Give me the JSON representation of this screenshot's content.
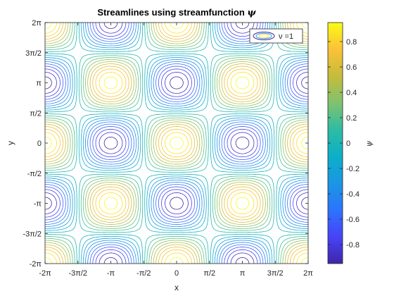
{
  "chart_data": {
    "type": "contour",
    "title_text": "Streamlines using streamfunction ",
    "title_symbol": "ψ",
    "xlabel": "x",
    "ylabel": "y",
    "xlim": [
      -6.2832,
      6.2832
    ],
    "ylim": [
      -6.2832,
      6.2832
    ],
    "xticks": [
      -6.2832,
      -4.7124,
      -3.1416,
      -1.5708,
      0,
      1.5708,
      3.1416,
      4.7124,
      6.2832
    ],
    "xtick_labels": [
      "-2π",
      "-3π/2",
      "-π",
      "-π/2",
      "0",
      "π/2",
      "π",
      "3π/2",
      "2π"
    ],
    "yticks": [
      -6.2832,
      -4.7124,
      -3.1416,
      -1.5708,
      0,
      1.5708,
      3.1416,
      4.7124,
      6.2832
    ],
    "ytick_labels": [
      "-2π",
      "-3π/2",
      "-π",
      "-π/2",
      "0",
      "π/2",
      "π",
      "3π/2",
      "2π"
    ],
    "function": "psi = cos(x) * cos(y)",
    "level_min": -0.95,
    "level_max": 0.95,
    "level_count": 20,
    "legend": {
      "label": "ν =1",
      "position": "top-right"
    },
    "colorbar": {
      "label": "ψ",
      "limits": [
        -0.95,
        0.95
      ],
      "ticks": [
        -0.8,
        -0.6,
        -0.4,
        -0.2,
        0,
        0.2,
        0.4,
        0.6,
        0.8
      ],
      "tick_labels": [
        "-0.8",
        "-0.6",
        "-0.4",
        "-0.2",
        "0",
        "0.2",
        "0.4",
        "0.6",
        "0.8"
      ],
      "colormap": [
        "#3e26a8",
        "#4743f8",
        "#2c74fd",
        "#1b96e4",
        "#0cafc9",
        "#2dbca4",
        "#80c26f",
        "#c6bc3b",
        "#fbc138",
        "#f9fb14"
      ]
    }
  }
}
